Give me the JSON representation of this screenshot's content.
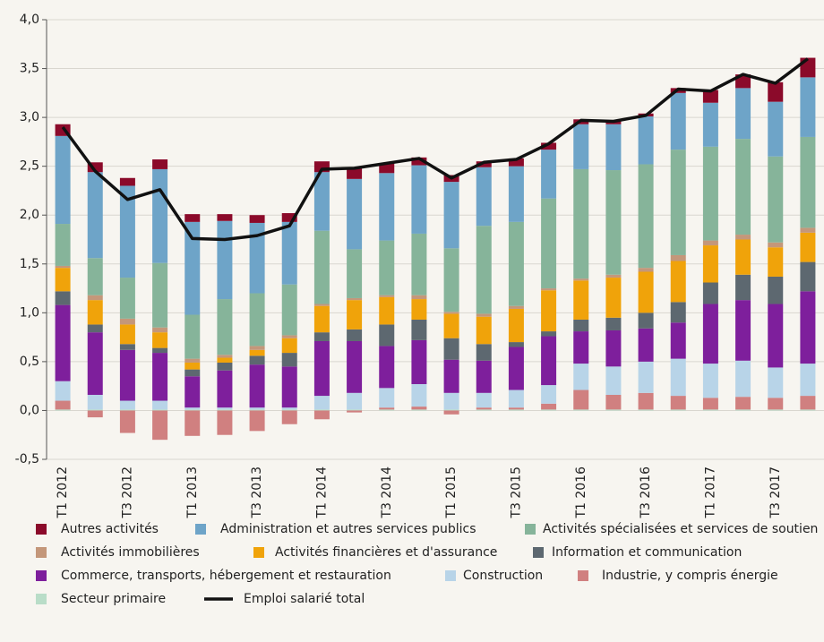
{
  "chart_data": {
    "type": "bar",
    "stacked": true,
    "grid": true,
    "categories": [
      "T1 2012",
      null,
      "T3 2012",
      null,
      "T1 2013",
      null,
      "T3 2013",
      null,
      "T1 2014",
      null,
      "T3 2014",
      null,
      "T1 2015",
      null,
      "T3 2015",
      null,
      "T1 2016",
      null,
      "T3 2016",
      null,
      "T1 2017",
      null,
      "T3 2017",
      null
    ],
    "ylim": [
      -0.5,
      4.0
    ],
    "yticks": [
      {
        "value": -0.5,
        "label": "-0,5"
      },
      {
        "value": 0,
        "label": "0,0"
      },
      {
        "value": 0.5,
        "label": "0,5"
      },
      {
        "value": 1.0,
        "label": "1,0"
      },
      {
        "value": 1.5,
        "label": "1,5"
      },
      {
        "value": 2.0,
        "label": "2,0"
      },
      {
        "value": 2.5,
        "label": "2,5"
      },
      {
        "value": 3.0,
        "label": "3,0"
      },
      {
        "value": 3.5,
        "label": "3,5"
      },
      {
        "value": 4.0,
        "label": "4,0"
      }
    ],
    "series": [
      {
        "name": "Autres activités",
        "color": "#8b0a2a",
        "values": [
          0.12,
          0.1,
          0.08,
          0.1,
          0.08,
          0.07,
          0.08,
          0.09,
          0.11,
          0.12,
          0.1,
          0.08,
          0.07,
          0.06,
          0.08,
          0.07,
          0.05,
          0.04,
          0.03,
          0.05,
          0.13,
          0.14,
          0.2,
          0.2
        ]
      },
      {
        "name": "Administration et autres services publics",
        "color": "#6ea4c8",
        "values": [
          0.9,
          0.88,
          0.94,
          0.96,
          0.95,
          0.8,
          0.72,
          0.64,
          0.6,
          0.72,
          0.69,
          0.7,
          0.68,
          0.6,
          0.57,
          0.5,
          0.46,
          0.47,
          0.49,
          0.58,
          0.45,
          0.52,
          0.56,
          0.61
        ]
      },
      {
        "name": "Activités spécialisées et services de soutien",
        "color": "#86b49a",
        "values": [
          0.43,
          0.38,
          0.42,
          0.66,
          0.45,
          0.57,
          0.54,
          0.52,
          0.75,
          0.5,
          0.56,
          0.63,
          0.65,
          0.9,
          0.86,
          0.92,
          1.12,
          1.07,
          1.06,
          1.08,
          0.96,
          0.98,
          0.88,
          0.93
        ]
      },
      {
        "name": "Activités immobilières",
        "color": "#c4977a",
        "values": [
          0.02,
          0.05,
          0.06,
          0.05,
          0.04,
          0.03,
          0.04,
          0.03,
          0.02,
          0.02,
          0.02,
          0.04,
          0.02,
          0.03,
          0.03,
          0.02,
          0.02,
          0.03,
          0.04,
          0.06,
          0.05,
          0.05,
          0.05,
          0.05
        ]
      },
      {
        "name": "Activités financières et d'assurance",
        "color": "#f0a30a",
        "values": [
          0.24,
          0.25,
          0.2,
          0.16,
          0.07,
          0.05,
          0.06,
          0.15,
          0.27,
          0.3,
          0.28,
          0.21,
          0.25,
          0.28,
          0.34,
          0.42,
          0.4,
          0.41,
          0.42,
          0.42,
          0.38,
          0.36,
          0.3,
          0.3
        ]
      },
      {
        "name": "Information et communication",
        "color": "#5d6870",
        "values": [
          0.14,
          0.08,
          0.06,
          0.05,
          0.07,
          0.08,
          0.09,
          0.14,
          0.09,
          0.12,
          0.22,
          0.21,
          0.22,
          0.17,
          0.05,
          0.05,
          0.12,
          0.13,
          0.16,
          0.21,
          0.22,
          0.26,
          0.28,
          0.3
        ]
      },
      {
        "name": "Commerce, transports, hébergement et restauration",
        "color": "#7e1f9c",
        "values": [
          0.78,
          0.64,
          0.52,
          0.49,
          0.32,
          0.38,
          0.44,
          0.42,
          0.56,
          0.53,
          0.43,
          0.45,
          0.34,
          0.33,
          0.44,
          0.5,
          0.33,
          0.37,
          0.34,
          0.37,
          0.61,
          0.62,
          0.65,
          0.74
        ]
      },
      {
        "name": "Construction",
        "color": "#b8d4e8",
        "values": [
          0.2,
          0.15,
          0.09,
          0.09,
          0.02,
          0.02,
          0.02,
          0.02,
          0.14,
          0.17,
          0.2,
          0.23,
          0.17,
          0.15,
          0.18,
          0.19,
          0.27,
          0.29,
          0.32,
          0.38,
          0.35,
          0.37,
          0.31,
          0.33
        ]
      },
      {
        "name": "Industrie, y compris énergie",
        "color": "#d08080",
        "values": [
          0.09,
          -0.07,
          -0.23,
          -0.3,
          -0.26,
          -0.25,
          -0.21,
          -0.14,
          -0.09,
          -0.02,
          0.02,
          0.03,
          -0.04,
          0.02,
          0.02,
          0.06,
          0.2,
          0.15,
          0.17,
          0.14,
          0.12,
          0.13,
          0.12,
          0.14
        ]
      },
      {
        "name": "Secteur primaire",
        "color": "#b9ddc8",
        "values": [
          0.01,
          0.01,
          0.01,
          0.01,
          0.01,
          0.01,
          0.01,
          0.01,
          0.01,
          0.01,
          0.01,
          0.01,
          0.01,
          0.01,
          0.01,
          0.01,
          0.01,
          0.01,
          0.01,
          0.01,
          0.01,
          0.01,
          0.01,
          0.01
        ]
      },
      {
        "name": "Emploi salarié total",
        "color": "#111111",
        "type": "line",
        "values": [
          2.9,
          2.45,
          2.16,
          2.26,
          1.76,
          1.75,
          1.79,
          1.89,
          2.47,
          2.48,
          2.53,
          2.58,
          2.38,
          2.54,
          2.57,
          2.73,
          2.97,
          2.96,
          3.02,
          3.29,
          3.27,
          3.44,
          3.35,
          3.6
        ]
      }
    ]
  }
}
